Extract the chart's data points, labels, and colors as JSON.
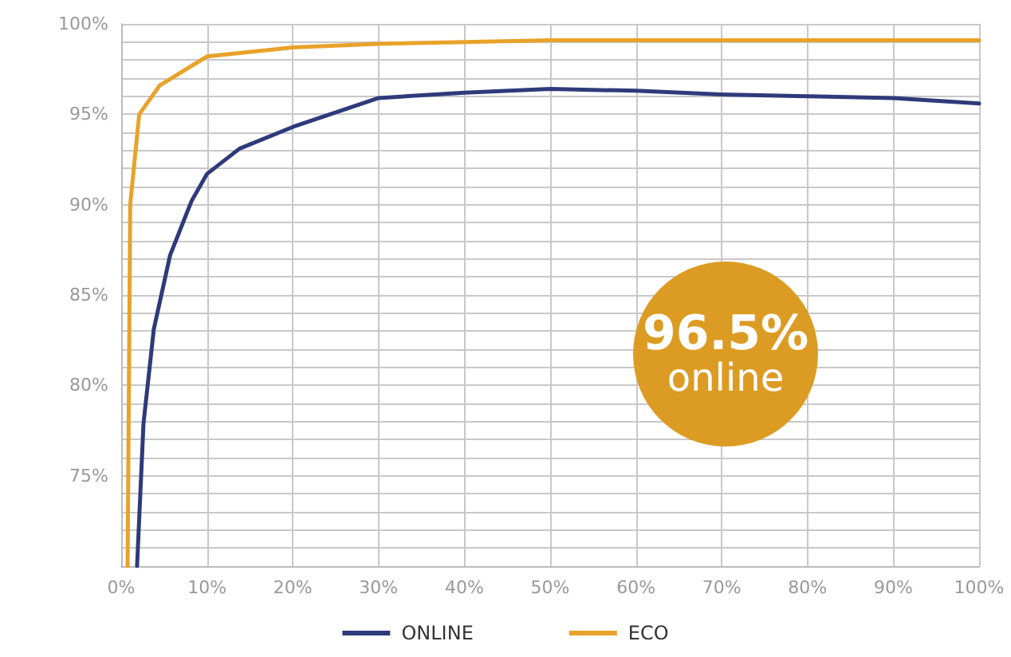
{
  "chart_data": {
    "type": "line",
    "series": [
      {
        "name": "ONLINE",
        "color": "#2e3a7a",
        "x": [
          1.85,
          2.6,
          3.8,
          5.7,
          8.2,
          10,
          13.8,
          20,
          30,
          40,
          50,
          60,
          70,
          80,
          90,
          100
        ],
        "values": [
          70,
          77.9,
          83.1,
          87.2,
          90.2,
          91.7,
          93.1,
          94.3,
          95.9,
          96.2,
          96.4,
          96.3,
          96.1,
          96.0,
          95.9,
          95.6
        ]
      },
      {
        "name": "ECO",
        "color": "#e8a22a",
        "x": [
          0.75,
          1.05,
          2.1,
          4.5,
          10,
          20,
          30,
          40,
          50,
          60,
          70,
          80,
          90,
          100
        ],
        "values": [
          70,
          90,
          95,
          96.6,
          98.2,
          98.7,
          98.9,
          99.0,
          99.1,
          99.1,
          99.1,
          99.1,
          99.1,
          99.1
        ]
      }
    ],
    "xlim": [
      0,
      100
    ],
    "xticks": [
      {
        "value": 0,
        "label": "0%"
      },
      {
        "value": 10,
        "label": "10%"
      },
      {
        "value": 20,
        "label": "20%"
      },
      {
        "value": 30,
        "label": "30%"
      },
      {
        "value": 40,
        "label": "40%"
      },
      {
        "value": 50,
        "label": "50%"
      },
      {
        "value": 60,
        "label": "60%"
      },
      {
        "value": 70,
        "label": "70%"
      },
      {
        "value": 80,
        "label": "80%"
      },
      {
        "value": 90,
        "label": "90%"
      },
      {
        "value": 100,
        "label": "100%"
      }
    ],
    "ylim": [
      70,
      100
    ],
    "yticks": [
      {
        "value": 71,
        "label": null
      },
      {
        "value": 72,
        "label": null
      },
      {
        "value": 73,
        "label": null
      },
      {
        "value": 74,
        "label": null
      },
      {
        "value": 75,
        "label": "75%"
      },
      {
        "value": 76,
        "label": null
      },
      {
        "value": 77,
        "label": null
      },
      {
        "value": 78,
        "label": null
      },
      {
        "value": 79,
        "label": null
      },
      {
        "value": 80,
        "label": "80%"
      },
      {
        "value": 81,
        "label": null
      },
      {
        "value": 82,
        "label": null
      },
      {
        "value": 83,
        "label": null
      },
      {
        "value": 84,
        "label": null
      },
      {
        "value": 85,
        "label": "85%"
      },
      {
        "value": 86,
        "label": null
      },
      {
        "value": 87,
        "label": null
      },
      {
        "value": 88,
        "label": null
      },
      {
        "value": 89,
        "label": null
      },
      {
        "value": 90,
        "label": "90%"
      },
      {
        "value": 91,
        "label": null
      },
      {
        "value": 92,
        "label": null
      },
      {
        "value": 93,
        "label": null
      },
      {
        "value": 94,
        "label": null
      },
      {
        "value": 95,
        "label": "95%"
      },
      {
        "value": 96,
        "label": null
      },
      {
        "value": 97,
        "label": null
      },
      {
        "value": 98,
        "label": null
      },
      {
        "value": 99,
        "label": null
      },
      {
        "value": 100,
        "label": "100%"
      }
    ],
    "grid": true,
    "legend": "bottom",
    "marker": "none",
    "line_style": "solid",
    "annotations": [
      "96.5% online"
    ]
  }
}
